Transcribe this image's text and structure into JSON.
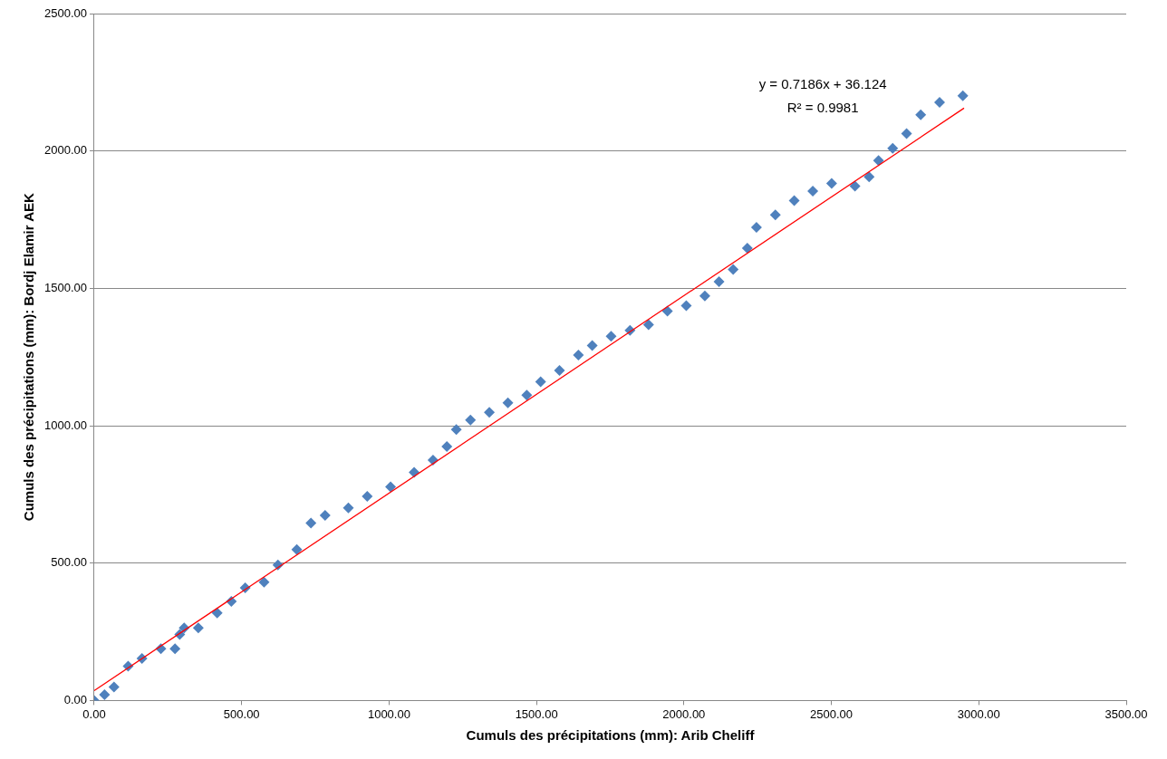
{
  "chart_data": {
    "type": "scatter",
    "xlabel": "Cumuls des précipitations (mm): Arib Cheliff",
    "ylabel": "Cumuls des précipitations (mm): Bordj Elamir AEK",
    "x": [
      0,
      35,
      67,
      115,
      162,
      226,
      274,
      290,
      305,
      353,
      417,
      465,
      512,
      576,
      623,
      687,
      735,
      783,
      862,
      926,
      1005,
      1085,
      1149,
      1196,
      1228,
      1276,
      1340,
      1403,
      1467,
      1514,
      1578,
      1642,
      1689,
      1753,
      1817,
      1880,
      1944,
      2008,
      2071,
      2119,
      2167,
      2215,
      2246,
      2310,
      2374,
      2437,
      2501,
      2580,
      2628,
      2660,
      2708,
      2755,
      2803,
      2867,
      2946
    ],
    "series": [
      {
        "color": "#4f81bd",
        "marker": "diamond",
        "values": [
          0,
          21,
          49,
          125,
          153,
          188,
          188,
          240,
          264,
          264,
          319,
          361,
          410,
          431,
          493,
          549,
          646,
          674,
          701,
          743,
          778,
          830,
          875,
          924,
          986,
          1021,
          1049,
          1083,
          1111,
          1160,
          1201,
          1257,
          1292,
          1326,
          1347,
          1368,
          1417,
          1437,
          1472,
          1524,
          1569,
          1646,
          1722,
          1767,
          1819,
          1854,
          1882,
          1872,
          1906,
          1965,
          2010,
          2063,
          2132,
          2177,
          2201
        ]
      },
      {
        "type": "line",
        "color": "#ff0000",
        "marker": "none",
        "x": [
          0,
          2950
        ],
        "values": [
          36.1,
          2156
        ]
      }
    ],
    "annotations": [
      "y = 0.7186x + 36.124",
      "R² = 0.9981"
    ],
    "xlim": [
      0,
      3500
    ],
    "xticks": [
      {
        "value": 0,
        "label": "0.00"
      },
      {
        "value": 500,
        "label": "500.00"
      },
      {
        "value": 1000,
        "label": "1000.00"
      },
      {
        "value": 1500,
        "label": "1500.00"
      },
      {
        "value": 2000,
        "label": "2000.00"
      },
      {
        "value": 2500,
        "label": "2500.00"
      },
      {
        "value": 3000,
        "label": "3000.00"
      },
      {
        "value": 3500,
        "label": "3500.00"
      }
    ],
    "ylim": [
      0,
      2500
    ],
    "yticks": [
      {
        "value": 0,
        "label": "0.00"
      },
      {
        "value": 500,
        "label": "500.00"
      },
      {
        "value": 1000,
        "label": "1000.00"
      },
      {
        "value": 1500,
        "label": "1500.00"
      },
      {
        "value": 2000,
        "label": "2000.00"
      },
      {
        "value": 2500,
        "label": "2500.00"
      }
    ],
    "grid": "y",
    "legend": false
  }
}
